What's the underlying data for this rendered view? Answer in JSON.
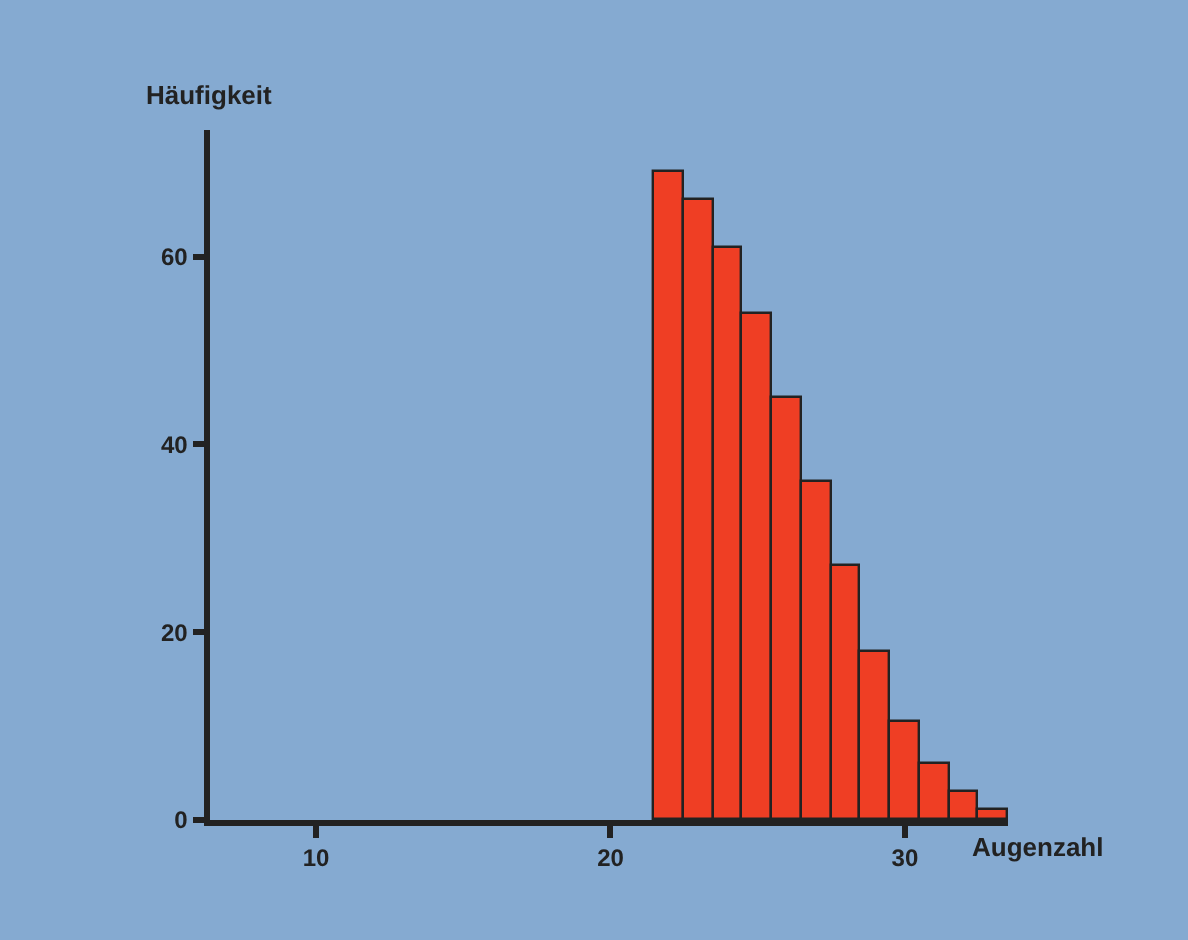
{
  "chart_data": {
    "type": "histogram",
    "xlabel": "Augenzahl",
    "ylabel": "Häufigkeit",
    "bins": [
      21.5,
      22.5,
      23.5,
      24.5,
      25.5,
      26.5,
      27.5,
      28.5,
      29.5,
      30.5,
      31.5,
      32.5,
      33.5
    ],
    "values": [
      69,
      66,
      61,
      54,
      45,
      36,
      27,
      18,
      10.5,
      6,
      3,
      1
    ],
    "color": "#ef3e24",
    "xlim": [
      6.4,
      33.5
    ],
    "xticks": [
      10,
      20,
      30
    ],
    "ylim": [
      0,
      73.5
    ],
    "yticks": [
      0,
      20,
      40,
      60
    ],
    "grid": false
  }
}
